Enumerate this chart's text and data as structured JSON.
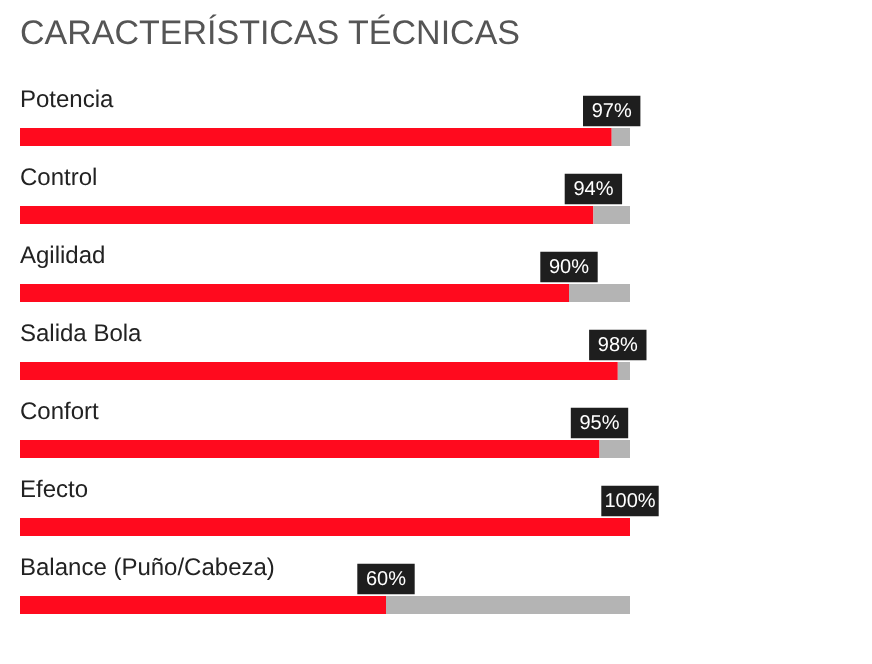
{
  "chart_data": {
    "type": "bar",
    "orientation": "horizontal",
    "stacked": true,
    "title": "CARACTERÍSTICAS TÉCNICAS",
    "categories": [
      "Potencia",
      "Control",
      "Agilidad",
      "Salida Bola",
      "Confort",
      "Efecto",
      "Balance (Puño/Cabeza)"
    ],
    "series": [
      {
        "color": "#ff0a1e",
        "values": [
          97,
          94,
          90,
          98,
          95,
          100,
          60
        ],
        "value_labels": [
          "97%",
          "94%",
          "90%",
          "98%",
          "95%",
          "100%",
          "60%"
        ]
      },
      {
        "color": "#b4b4b4",
        "values": [
          3,
          6,
          10,
          2,
          5,
          0,
          40
        ]
      }
    ],
    "xlim": [
      0,
      100
    ],
    "tick_labels": "y"
  }
}
